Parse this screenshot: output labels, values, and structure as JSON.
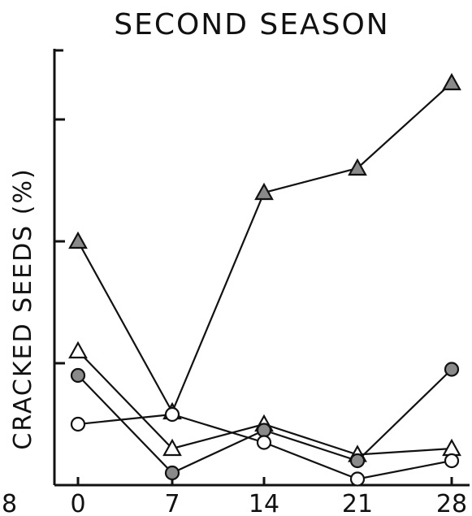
{
  "chart_data": {
    "type": "line",
    "title": "SECOND SEASON",
    "ylabel": "CRACKED SEEDS (%)",
    "xlabel": "",
    "x": [
      0,
      7,
      14,
      21,
      28
    ],
    "x_tick_labels": [
      "0",
      "7",
      "14",
      "21",
      "28"
    ],
    "left_edge_partial_tick": "8",
    "ylim": [
      0,
      3.6
    ],
    "y_ticks": [
      1,
      2,
      3
    ],
    "series": [
      {
        "marker": "filled-triangle",
        "values": [
          2.0,
          0.6,
          2.4,
          2.6,
          3.3
        ]
      },
      {
        "marker": "open-triangle",
        "values": [
          1.1,
          0.3,
          0.5,
          0.25,
          0.3
        ]
      },
      {
        "marker": "filled-circle",
        "values": [
          0.9,
          0.1,
          0.45,
          0.2,
          0.95
        ]
      },
      {
        "marker": "open-circle",
        "values": [
          0.5,
          0.58,
          0.35,
          0.05,
          0.2
        ]
      }
    ]
  }
}
